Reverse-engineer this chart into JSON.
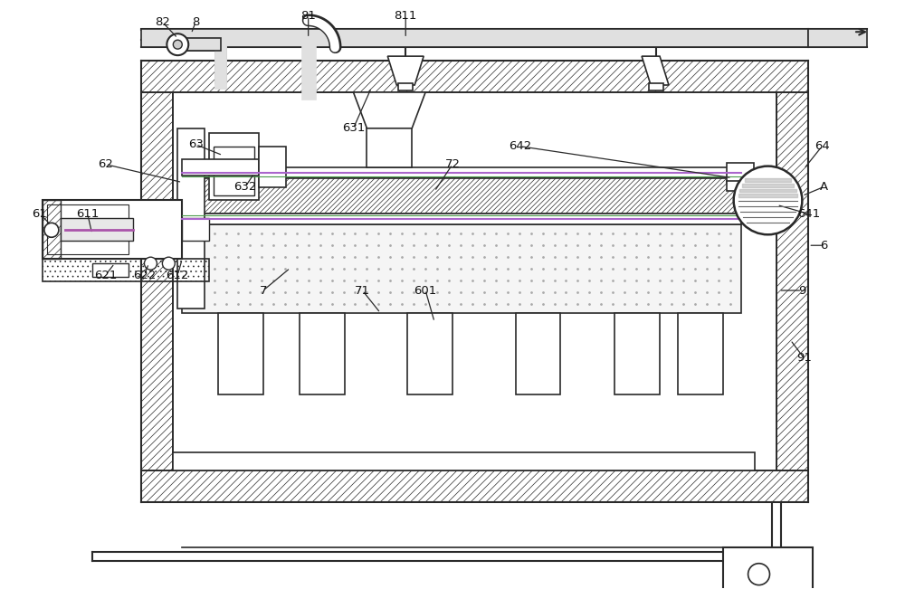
{
  "bg_color": "#ffffff",
  "lc": "#2a2a2a",
  "lw": 1.0,
  "figsize": [
    10.0,
    6.51
  ],
  "dpi": 100,
  "hatch_lw": 0.5
}
